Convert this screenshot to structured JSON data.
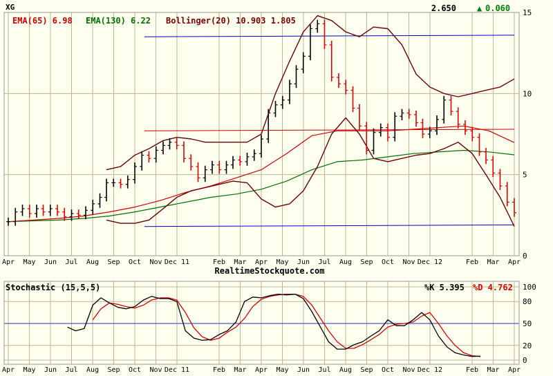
{
  "header": {
    "symbol": "XG",
    "last_price": "2.650",
    "change_arrow": "▲",
    "change": "0.060",
    "change_color": "#008000"
  },
  "indicators": [
    {
      "label": "EMA(65) 6.98",
      "color": "#cc0000"
    },
    {
      "label": "EMA(130) 6.22",
      "color": "#007000"
    },
    {
      "label": "Bollinger(20) 10.903 1.805",
      "color": "#800000"
    }
  ],
  "watermark": "RealtimeStockquote.com",
  "stochastic": {
    "title": "Stochastic (15,5,5)",
    "k_label": "%K 5.395",
    "d_label": "%D 4.762",
    "k_color": "#000000",
    "d_color": "#dd0000",
    "y_ticks": [
      0,
      20,
      50,
      80,
      100
    ],
    "midline": 50,
    "k": [
      [
        0.117,
        45
      ],
      [
        0.133,
        40
      ],
      [
        0.15,
        43
      ],
      [
        0.167,
        75
      ],
      [
        0.183,
        85
      ],
      [
        0.2,
        78
      ],
      [
        0.217,
        72
      ],
      [
        0.233,
        70
      ],
      [
        0.25,
        73
      ],
      [
        0.267,
        82
      ],
      [
        0.283,
        87
      ],
      [
        0.3,
        84
      ],
      [
        0.317,
        84
      ],
      [
        0.333,
        80
      ],
      [
        0.35,
        40
      ],
      [
        0.367,
        30
      ],
      [
        0.383,
        27
      ],
      [
        0.4,
        28
      ],
      [
        0.417,
        35
      ],
      [
        0.433,
        40
      ],
      [
        0.45,
        52
      ],
      [
        0.467,
        80
      ],
      [
        0.483,
        86
      ],
      [
        0.5,
        85
      ],
      [
        0.517,
        88
      ],
      [
        0.533,
        90
      ],
      [
        0.55,
        89
      ],
      [
        0.567,
        90
      ],
      [
        0.583,
        84
      ],
      [
        0.6,
        66
      ],
      [
        0.617,
        45
      ],
      [
        0.633,
        25
      ],
      [
        0.65,
        15
      ],
      [
        0.667,
        15
      ],
      [
        0.683,
        21
      ],
      [
        0.7,
        25
      ],
      [
        0.717,
        33
      ],
      [
        0.733,
        40
      ],
      [
        0.75,
        55
      ],
      [
        0.767,
        47
      ],
      [
        0.783,
        47
      ],
      [
        0.8,
        55
      ],
      [
        0.817,
        65
      ],
      [
        0.833,
        55
      ],
      [
        0.85,
        33
      ],
      [
        0.867,
        18
      ],
      [
        0.883,
        10
      ],
      [
        0.9,
        7
      ],
      [
        0.917,
        5
      ],
      [
        0.933,
        5.4
      ]
    ],
    "d": [
      [
        0.167,
        55
      ],
      [
        0.183,
        70
      ],
      [
        0.2,
        78
      ],
      [
        0.217,
        76
      ],
      [
        0.233,
        73
      ],
      [
        0.25,
        71
      ],
      [
        0.267,
        75
      ],
      [
        0.283,
        82
      ],
      [
        0.3,
        85
      ],
      [
        0.317,
        85
      ],
      [
        0.333,
        82
      ],
      [
        0.35,
        65
      ],
      [
        0.367,
        44
      ],
      [
        0.383,
        32
      ],
      [
        0.4,
        27
      ],
      [
        0.417,
        30
      ],
      [
        0.433,
        38
      ],
      [
        0.45,
        45
      ],
      [
        0.467,
        57
      ],
      [
        0.483,
        73
      ],
      [
        0.5,
        83
      ],
      [
        0.517,
        87
      ],
      [
        0.533,
        89
      ],
      [
        0.55,
        90
      ],
      [
        0.567,
        90
      ],
      [
        0.583,
        87
      ],
      [
        0.6,
        75
      ],
      [
        0.617,
        57
      ],
      [
        0.633,
        40
      ],
      [
        0.65,
        25
      ],
      [
        0.667,
        16
      ],
      [
        0.683,
        16
      ],
      [
        0.7,
        21
      ],
      [
        0.717,
        28
      ],
      [
        0.733,
        35
      ],
      [
        0.75,
        45
      ],
      [
        0.767,
        49
      ],
      [
        0.783,
        50
      ],
      [
        0.8,
        52
      ],
      [
        0.817,
        60
      ],
      [
        0.833,
        65
      ],
      [
        0.85,
        50
      ],
      [
        0.867,
        33
      ],
      [
        0.883,
        20
      ],
      [
        0.9,
        10
      ],
      [
        0.917,
        6
      ],
      [
        0.933,
        4.8
      ]
    ]
  },
  "chart_data": {
    "type": "line",
    "subtype": "ohlc-price-chart",
    "price_axis": {
      "ticks": [
        0,
        5,
        10,
        15
      ],
      "range": [
        0,
        15
      ]
    },
    "x_axis_labels": [
      {
        "label": "Apr",
        "pos": 0.0
      },
      {
        "label": "May",
        "pos": 0.0417
      },
      {
        "label": "Jun",
        "pos": 0.0833
      },
      {
        "label": "Jul",
        "pos": 0.125
      },
      {
        "label": "Aug",
        "pos": 0.1667
      },
      {
        "label": "Sep",
        "pos": 0.2083
      },
      {
        "label": "Oct",
        "pos": 0.25
      },
      {
        "label": "Nov",
        "pos": 0.2917
      },
      {
        "label": "Dec 11",
        "pos": 0.3333
      },
      {
        "label": "Feb",
        "pos": 0.4167
      },
      {
        "label": "Mar",
        "pos": 0.4583
      },
      {
        "label": "Apr",
        "pos": 0.5
      },
      {
        "label": "May",
        "pos": 0.5417
      },
      {
        "label": "Jun",
        "pos": 0.5833
      },
      {
        "label": "Jul",
        "pos": 0.625
      },
      {
        "label": "Aug",
        "pos": 0.6667
      },
      {
        "label": "Sep",
        "pos": 0.7083
      },
      {
        "label": "Oct",
        "pos": 0.75
      },
      {
        "label": "Nov",
        "pos": 0.7917
      },
      {
        "label": "Dec 12",
        "pos": 0.8333
      },
      {
        "label": "Feb",
        "pos": 0.9167
      },
      {
        "label": "Mar",
        "pos": 0.9583
      },
      {
        "label": "Apr",
        "pos": 1.0
      }
    ],
    "price_close": [
      [
        0,
        2.1
      ],
      [
        0.014,
        2.7
      ],
      [
        0.028,
        2.9
      ],
      [
        0.042,
        2.6
      ],
      [
        0.056,
        2.9
      ],
      [
        0.069,
        2.7
      ],
      [
        0.083,
        2.9
      ],
      [
        0.097,
        2.7
      ],
      [
        0.111,
        2.4
      ],
      [
        0.125,
        2.6
      ],
      [
        0.139,
        2.5
      ],
      [
        0.153,
        2.8
      ],
      [
        0.167,
        3.2
      ],
      [
        0.181,
        3.6
      ],
      [
        0.194,
        4.5
      ],
      [
        0.208,
        4.5
      ],
      [
        0.222,
        4.4
      ],
      [
        0.236,
        4.7
      ],
      [
        0.25,
        5.5
      ],
      [
        0.264,
        6.2
      ],
      [
        0.278,
        6.0
      ],
      [
        0.292,
        6.5
      ],
      [
        0.306,
        6.8
      ],
      [
        0.319,
        7.0
      ],
      [
        0.333,
        6.8
      ],
      [
        0.347,
        6.0
      ],
      [
        0.361,
        5.5
      ],
      [
        0.375,
        4.8
      ],
      [
        0.389,
        5.3
      ],
      [
        0.403,
        5.6
      ],
      [
        0.417,
        5.3
      ],
      [
        0.431,
        5.6
      ],
      [
        0.444,
        5.9
      ],
      [
        0.458,
        5.8
      ],
      [
        0.472,
        6.1
      ],
      [
        0.486,
        6.3
      ],
      [
        0.5,
        7.2
      ],
      [
        0.514,
        8.8
      ],
      [
        0.528,
        9.3
      ],
      [
        0.542,
        9.6
      ],
      [
        0.556,
        10.6
      ],
      [
        0.569,
        11.5
      ],
      [
        0.583,
        12.3
      ],
      [
        0.597,
        14.0
      ],
      [
        0.611,
        14.3
      ],
      [
        0.625,
        13.0
      ],
      [
        0.639,
        11.0
      ],
      [
        0.653,
        10.6
      ],
      [
        0.667,
        10.2
      ],
      [
        0.681,
        9.1
      ],
      [
        0.694,
        8.0
      ],
      [
        0.708,
        6.5
      ],
      [
        0.722,
        7.6
      ],
      [
        0.736,
        7.9
      ],
      [
        0.75,
        7.3
      ],
      [
        0.764,
        8.6
      ],
      [
        0.778,
        8.8
      ],
      [
        0.792,
        8.7
      ],
      [
        0.806,
        8.2
      ],
      [
        0.819,
        7.5
      ],
      [
        0.833,
        7.7
      ],
      [
        0.847,
        8.4
      ],
      [
        0.861,
        9.6
      ],
      [
        0.875,
        8.9
      ],
      [
        0.889,
        8.1
      ],
      [
        0.903,
        7.7
      ],
      [
        0.917,
        7.3
      ],
      [
        0.931,
        6.4
      ],
      [
        0.944,
        5.9
      ],
      [
        0.958,
        5.1
      ],
      [
        0.972,
        4.3
      ],
      [
        0.986,
        3.3
      ],
      [
        1.0,
        2.65
      ]
    ],
    "ema65": [
      [
        0,
        2.1
      ],
      [
        0.05,
        2.2
      ],
      [
        0.1,
        2.3
      ],
      [
        0.15,
        2.45
      ],
      [
        0.2,
        2.7
      ],
      [
        0.25,
        3.0
      ],
      [
        0.3,
        3.4
      ],
      [
        0.35,
        3.9
      ],
      [
        0.4,
        4.3
      ],
      [
        0.45,
        4.8
      ],
      [
        0.5,
        5.3
      ],
      [
        0.55,
        6.3
      ],
      [
        0.6,
        7.4
      ],
      [
        0.65,
        7.7
      ],
      [
        0.7,
        7.7
      ],
      [
        0.75,
        7.7
      ],
      [
        0.8,
        7.8
      ],
      [
        0.85,
        7.9
      ],
      [
        0.9,
        8.0
      ],
      [
        0.95,
        7.7
      ],
      [
        1.0,
        6.98
      ]
    ],
    "ema130": [
      [
        0,
        2.1
      ],
      [
        0.05,
        2.15
      ],
      [
        0.1,
        2.2
      ],
      [
        0.15,
        2.3
      ],
      [
        0.2,
        2.45
      ],
      [
        0.25,
        2.7
      ],
      [
        0.3,
        3.0
      ],
      [
        0.35,
        3.3
      ],
      [
        0.4,
        3.6
      ],
      [
        0.45,
        3.8
      ],
      [
        0.5,
        4.1
      ],
      [
        0.55,
        4.6
      ],
      [
        0.6,
        5.3
      ],
      [
        0.65,
        5.8
      ],
      [
        0.7,
        5.9
      ],
      [
        0.75,
        6.1
      ],
      [
        0.8,
        6.3
      ],
      [
        0.85,
        6.4
      ],
      [
        0.9,
        6.5
      ],
      [
        0.95,
        6.4
      ],
      [
        1.0,
        6.22
      ]
    ],
    "bollinger_upper": [
      [
        0.194,
        5.3
      ],
      [
        0.222,
        5.5
      ],
      [
        0.25,
        6.2
      ],
      [
        0.278,
        6.6
      ],
      [
        0.306,
        7.1
      ],
      [
        0.333,
        7.3
      ],
      [
        0.361,
        7.2
      ],
      [
        0.389,
        7.0
      ],
      [
        0.417,
        7.0
      ],
      [
        0.444,
        7.0
      ],
      [
        0.472,
        7.0
      ],
      [
        0.5,
        7.5
      ],
      [
        0.528,
        10.0
      ],
      [
        0.556,
        12.0
      ],
      [
        0.583,
        13.8
      ],
      [
        0.611,
        14.8
      ],
      [
        0.639,
        14.5
      ],
      [
        0.667,
        13.8
      ],
      [
        0.694,
        13.5
      ],
      [
        0.722,
        14.1
      ],
      [
        0.75,
        14.0
      ],
      [
        0.778,
        13.0
      ],
      [
        0.806,
        11.2
      ],
      [
        0.833,
        10.4
      ],
      [
        0.861,
        10.0
      ],
      [
        0.889,
        9.8
      ],
      [
        0.917,
        10.0
      ],
      [
        0.944,
        10.2
      ],
      [
        0.972,
        10.4
      ],
      [
        1.0,
        10.9
      ]
    ],
    "bollinger_lower": [
      [
        0.194,
        2.2
      ],
      [
        0.222,
        2.0
      ],
      [
        0.25,
        2.0
      ],
      [
        0.278,
        2.2
      ],
      [
        0.306,
        2.9
      ],
      [
        0.333,
        3.6
      ],
      [
        0.361,
        4.0
      ],
      [
        0.389,
        4.2
      ],
      [
        0.417,
        4.4
      ],
      [
        0.444,
        4.6
      ],
      [
        0.472,
        4.5
      ],
      [
        0.5,
        3.5
      ],
      [
        0.528,
        3.0
      ],
      [
        0.556,
        3.2
      ],
      [
        0.583,
        4.0
      ],
      [
        0.611,
        5.5
      ],
      [
        0.639,
        7.5
      ],
      [
        0.667,
        8.5
      ],
      [
        0.694,
        7.5
      ],
      [
        0.722,
        6.0
      ],
      [
        0.75,
        5.8
      ],
      [
        0.778,
        6.0
      ],
      [
        0.806,
        6.2
      ],
      [
        0.833,
        6.3
      ],
      [
        0.861,
        6.6
      ],
      [
        0.889,
        7.0
      ],
      [
        0.917,
        6.3
      ],
      [
        0.944,
        5.0
      ],
      [
        0.972,
        3.6
      ],
      [
        1.0,
        1.805
      ]
    ],
    "horizontal_lines": [
      {
        "y0": 13.5,
        "y1": 13.6,
        "x0": 0.269,
        "x1": 1.0,
        "color": "#0000cc"
      },
      {
        "y0": 7.7,
        "y1": 7.8,
        "x0": 0.269,
        "x1": 1.0,
        "color": "#cc0000"
      },
      {
        "y0": 1.8,
        "y1": 1.9,
        "x0": 0.269,
        "x1": 1.0,
        "color": "#0000cc"
      }
    ]
  }
}
